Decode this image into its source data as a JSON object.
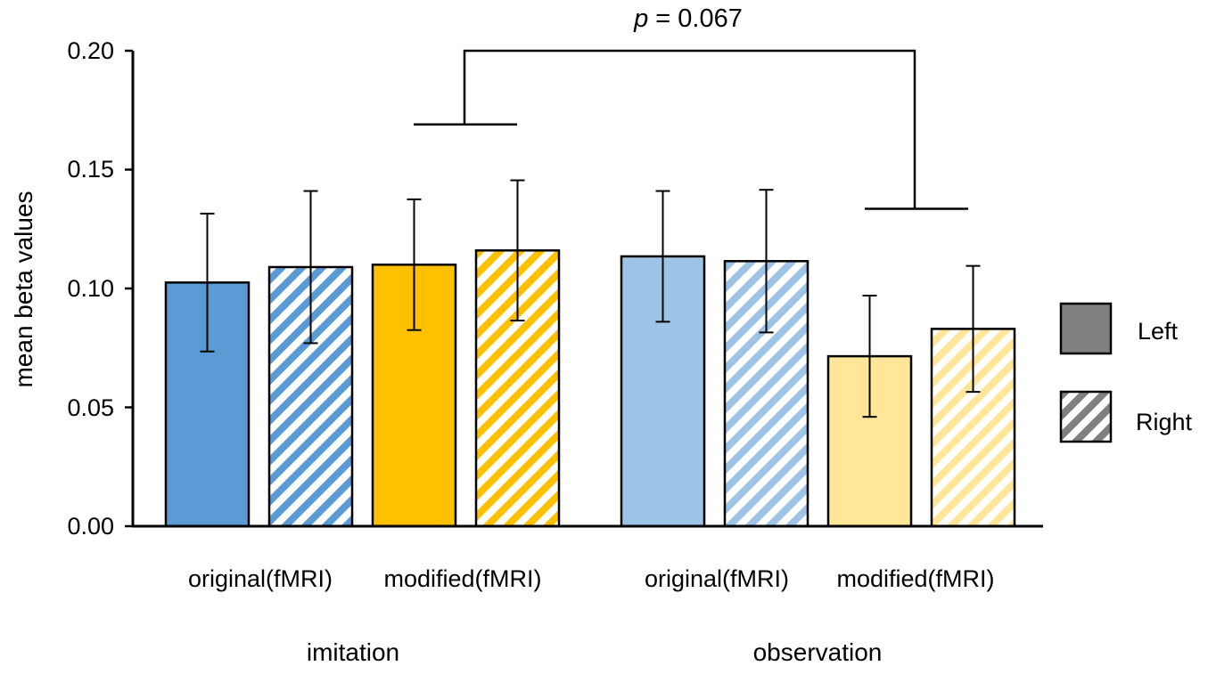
{
  "chart_data": {
    "type": "bar",
    "ylabel": "mean beta values",
    "ylim": [
      0,
      0.2
    ],
    "yticks": [
      "0.00",
      "0.05",
      "0.10",
      "0.15",
      "0.20"
    ],
    "ytick_values": [
      0,
      0.05,
      0.1,
      0.15,
      0.2
    ],
    "groups": [
      {
        "name": "imitation",
        "categories": [
          "original(fMRI)",
          "modified(fMRI)"
        ]
      },
      {
        "name": "observation",
        "categories": [
          "original(fMRI)",
          "modified(fMRI)"
        ]
      }
    ],
    "bars": [
      {
        "group": "imitation",
        "condition": "original(fMRI)",
        "hemisphere": "Left",
        "value": 0.1025,
        "error": 0.029,
        "color": "#5b9bd5"
      },
      {
        "group": "imitation",
        "condition": "original(fMRI)",
        "hemisphere": "Right",
        "value": 0.109,
        "error": 0.032,
        "color": "#5b9bd5"
      },
      {
        "group": "imitation",
        "condition": "modified(fMRI)",
        "hemisphere": "Left",
        "value": 0.11,
        "error": 0.0275,
        "color": "#ffc000"
      },
      {
        "group": "imitation",
        "condition": "modified(fMRI)",
        "hemisphere": "Right",
        "value": 0.116,
        "error": 0.0295,
        "color": "#ffc000"
      },
      {
        "group": "observation",
        "condition": "original(fMRI)",
        "hemisphere": "Left",
        "value": 0.1135,
        "error": 0.0275,
        "color": "#9dc3e6"
      },
      {
        "group": "observation",
        "condition": "original(fMRI)",
        "hemisphere": "Right",
        "value": 0.1115,
        "error": 0.03,
        "color": "#9dc3e6"
      },
      {
        "group": "observation",
        "condition": "modified(fMRI)",
        "hemisphere": "Left",
        "value": 0.0715,
        "error": 0.0255,
        "color": "#ffe699"
      },
      {
        "group": "observation",
        "condition": "modified(fMRI)",
        "hemisphere": "Right",
        "value": 0.083,
        "error": 0.0265,
        "color": "#ffe699"
      }
    ],
    "legend": {
      "position": "right",
      "entries": [
        {
          "label": "Left",
          "pattern": "solid",
          "color": "#808080"
        },
        {
          "label": "Right",
          "pattern": "hatched",
          "color": "#808080"
        }
      ]
    },
    "annotation": {
      "p_symbol": "p",
      "p_text": " = 0.067",
      "left_bar_level": 0.169,
      "right_bar_level": 0.1335,
      "top_level": 0.2
    }
  }
}
